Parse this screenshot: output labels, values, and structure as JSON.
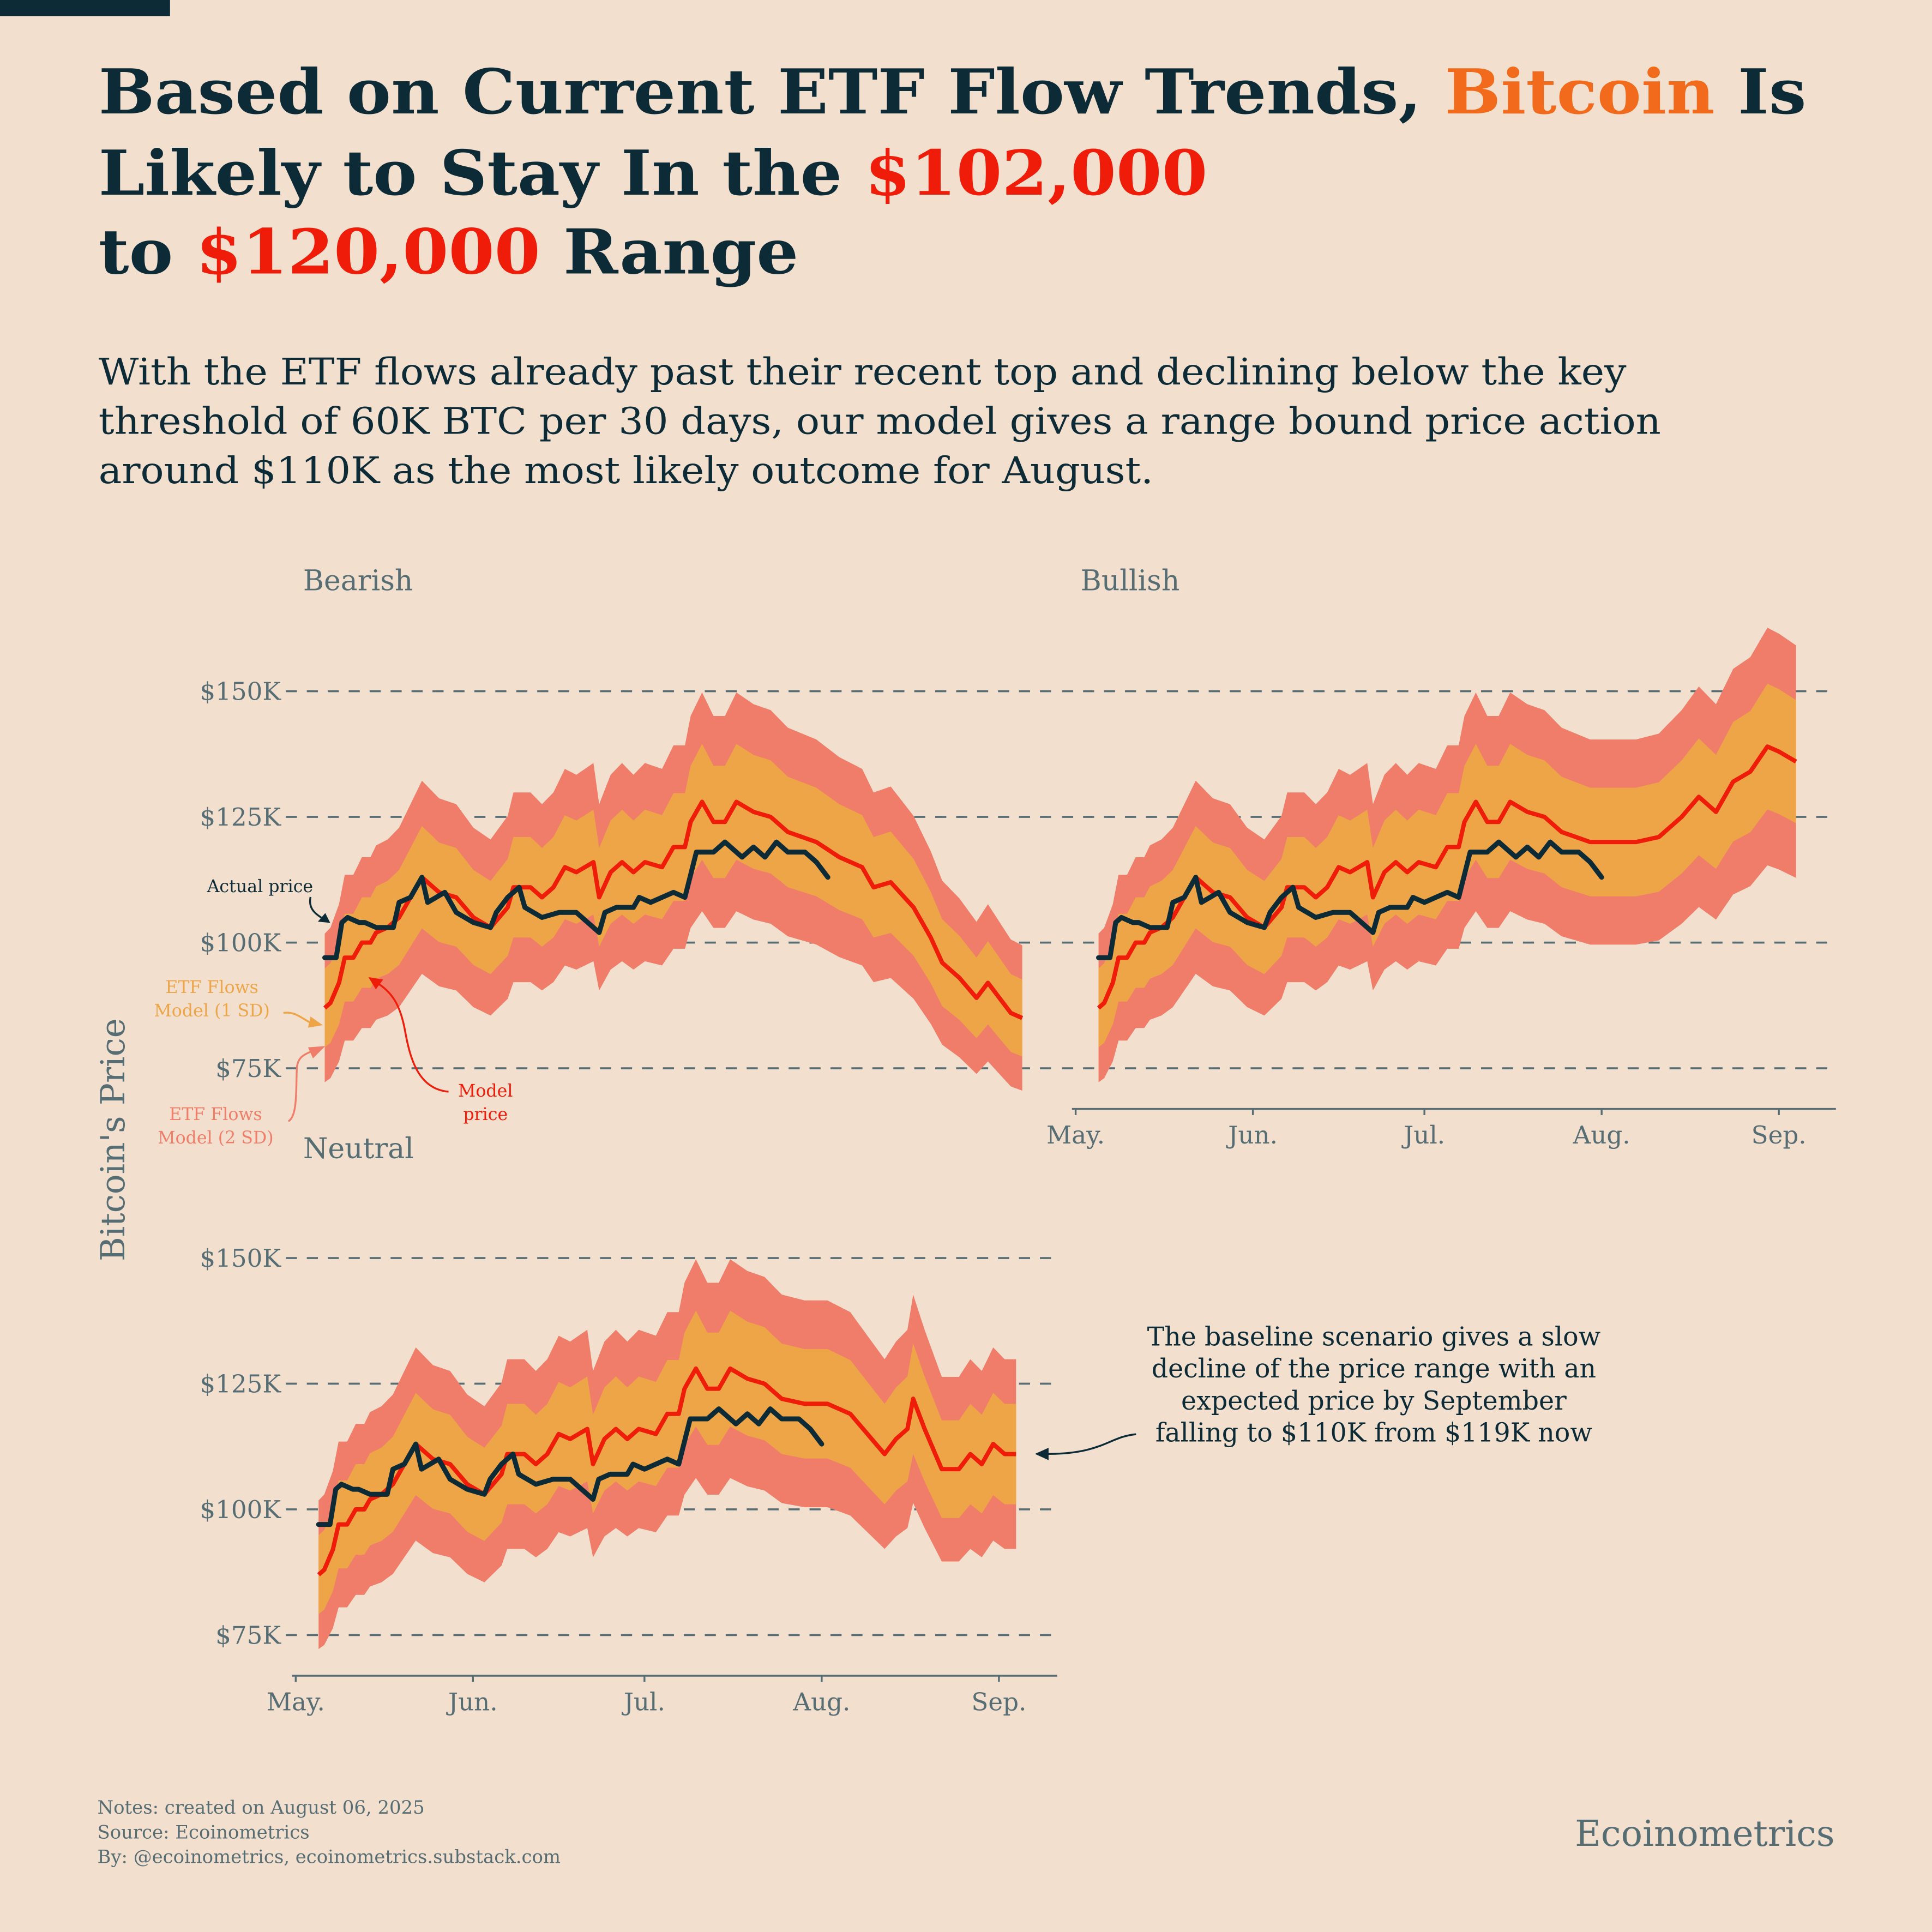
{
  "header": {
    "title_line1": [
      "Based on Current ETF Flow Trends, ",
      "Bitcoin",
      " Is"
    ],
    "title_line2": [
      "Likely to Stay In the ",
      "$102,000"
    ],
    "title_line3": [
      "to ",
      "$120,000",
      " Range"
    ],
    "subtitle": [
      "With the ETF flows already past their recent top and declining below the key",
      "threshold of 60K BTC per 30 days, our model gives a range bound price action",
      "around $110K as the most likely outcome for August."
    ]
  },
  "colors": {
    "background": "#f2dfce",
    "dark": "#0d2b36",
    "bitcoin": "#f26b1d",
    "price_highlight": "#ef1c0a",
    "model_line": "#ef1c0a",
    "band_1sd": "#eea548",
    "band_2sd": "#f07d6a",
    "gray": "#566d74"
  },
  "y_axis_title": "Bitcoin's Price",
  "annotations": {
    "actual_price": "Actual price",
    "sd1": [
      "ETF Flows",
      "Model (1 SD)"
    ],
    "sd2": [
      "ETF Flows",
      "Model (2 SD)"
    ],
    "model_price": [
      "Model",
      "price"
    ],
    "neutral_note": [
      "The baseline scenario gives a slow",
      "decline of the price range with an",
      "expected price by September",
      "falling to $110K from $119K now"
    ]
  },
  "chart_data": {
    "type": "line",
    "x_unit": "days since May 1, 2025",
    "ylabel": "Bitcoin's Price",
    "y_unit": "thousand USD",
    "ylim": [
      70,
      160
    ],
    "grid": "horizontal dashed",
    "y_ticks": {
      "values": [
        150,
        125,
        100,
        75
      ],
      "labels": [
        "$150K",
        "$125K",
        "$100K",
        "$75K"
      ]
    },
    "x_ticks": {
      "values": [
        0,
        31,
        61,
        92,
        123
      ],
      "labels": [
        "May.",
        "Jun.",
        "Jul.",
        "Aug.",
        "Sep."
      ]
    },
    "band_sd1_pct": 9,
    "band_sd2_pct": 17,
    "actual_price": [
      [
        4,
        97
      ],
      [
        6,
        97
      ],
      [
        7,
        104
      ],
      [
        8,
        105
      ],
      [
        10,
        104
      ],
      [
        11,
        104
      ],
      [
        13,
        103
      ],
      [
        16,
        103
      ],
      [
        17,
        108
      ],
      [
        19,
        109
      ],
      [
        21,
        113
      ],
      [
        22,
        108
      ],
      [
        25,
        110
      ],
      [
        27,
        106
      ],
      [
        30,
        104
      ],
      [
        33,
        103
      ],
      [
        34,
        106
      ],
      [
        36,
        109
      ],
      [
        38,
        111
      ],
      [
        39,
        107
      ],
      [
        42,
        105
      ],
      [
        45,
        106
      ],
      [
        48,
        106
      ],
      [
        52,
        102
      ],
      [
        53,
        106
      ],
      [
        55,
        107
      ],
      [
        58,
        107
      ],
      [
        59,
        109
      ],
      [
        61,
        108
      ],
      [
        65,
        110
      ],
      [
        67,
        109
      ],
      [
        69,
        118
      ],
      [
        72,
        118
      ],
      [
        74,
        120
      ],
      [
        77,
        117
      ],
      [
        79,
        119
      ],
      [
        81,
        117
      ],
      [
        83,
        120
      ],
      [
        85,
        118
      ],
      [
        88,
        118
      ],
      [
        90,
        116
      ],
      [
        92,
        113
      ]
    ],
    "model_base": [
      [
        4,
        87
      ],
      [
        5,
        88
      ],
      [
        6.5,
        92
      ],
      [
        7.5,
        97
      ],
      [
        9,
        97
      ],
      [
        10.5,
        100
      ],
      [
        12,
        100
      ],
      [
        13,
        102
      ],
      [
        15,
        103
      ],
      [
        17,
        105
      ],
      [
        18,
        107
      ],
      [
        21,
        113
      ],
      [
        23,
        111
      ],
      [
        24,
        110
      ],
      [
        27,
        109
      ],
      [
        30,
        105
      ],
      [
        33,
        103
      ],
      [
        36,
        107
      ],
      [
        37,
        111
      ],
      [
        40,
        111
      ],
      [
        42,
        109
      ],
      [
        44,
        111
      ],
      [
        46,
        115
      ],
      [
        48,
        114
      ],
      [
        51,
        116
      ],
      [
        52,
        109
      ],
      [
        54,
        114
      ],
      [
        56,
        116
      ],
      [
        58,
        114
      ],
      [
        60,
        116
      ],
      [
        63,
        115
      ],
      [
        65,
        119
      ],
      [
        67,
        119
      ],
      [
        68,
        124
      ],
      [
        70,
        128
      ],
      [
        72,
        124
      ],
      [
        74,
        124
      ],
      [
        76,
        128
      ],
      [
        79,
        126
      ],
      [
        82,
        125
      ],
      [
        85,
        122
      ]
    ],
    "scenarios": [
      {
        "name": "Bearish",
        "model_after": [
          [
            90,
            120
          ],
          [
            94,
            117
          ],
          [
            98,
            115
          ],
          [
            100,
            111
          ],
          [
            103,
            112
          ],
          [
            107,
            107
          ],
          [
            110,
            101
          ],
          [
            112,
            96
          ],
          [
            115,
            93
          ],
          [
            118,
            89
          ],
          [
            120,
            92
          ],
          [
            122,
            89
          ],
          [
            124,
            86
          ],
          [
            126,
            85
          ]
        ]
      },
      {
        "name": "Bullish",
        "model_after": [
          [
            90,
            120
          ],
          [
            94,
            120
          ],
          [
            98,
            120
          ],
          [
            102,
            121
          ],
          [
            106,
            125
          ],
          [
            109,
            129
          ],
          [
            112,
            126
          ],
          [
            115,
            132
          ],
          [
            118,
            134
          ],
          [
            121,
            139
          ],
          [
            123,
            138
          ],
          [
            126,
            136
          ]
        ]
      },
      {
        "name": "Neutral",
        "model_after": [
          [
            89,
            121
          ],
          [
            93,
            121
          ],
          [
            97,
            119
          ],
          [
            100,
            115
          ],
          [
            103,
            111
          ],
          [
            105,
            114
          ],
          [
            107,
            116
          ],
          [
            108,
            122
          ],
          [
            110,
            116
          ],
          [
            113,
            108
          ],
          [
            116,
            108
          ],
          [
            118,
            111
          ],
          [
            120,
            109
          ],
          [
            122,
            113
          ],
          [
            124,
            111
          ],
          [
            126,
            111
          ]
        ]
      }
    ]
  },
  "footer": {
    "notes": "Notes: created on August 06, 2025",
    "source": "Source: Ecoinometrics",
    "by": "By: @ecoinometrics, ecoinometrics.substack.com",
    "brand": "Ecoinometrics"
  }
}
